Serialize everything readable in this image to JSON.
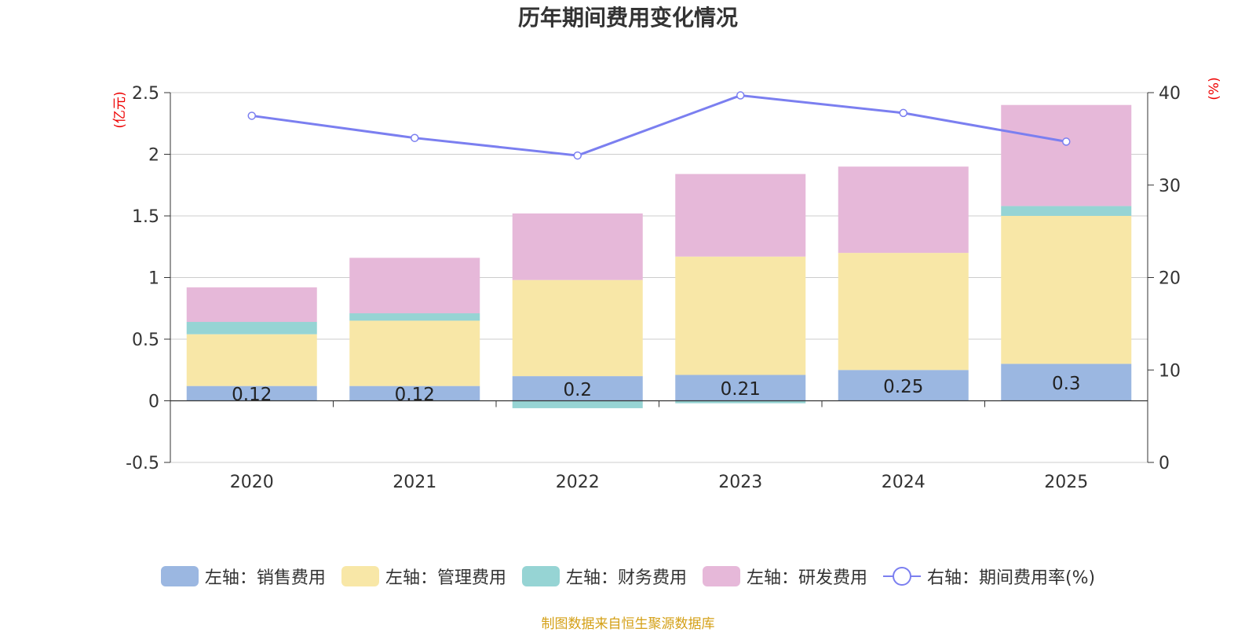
{
  "chart_data": {
    "type": "bar",
    "title": "历年期间费用变化情况",
    "categories": [
      "2020",
      "2021",
      "2022",
      "2023",
      "2024",
      "2025"
    ],
    "left_axis": {
      "unit_label": "(亿元)",
      "ylim": [
        -0.5,
        2.5
      ],
      "ticks": [
        -0.5,
        0,
        0.5,
        1,
        1.5,
        2,
        2.5
      ],
      "tick_labels": [
        "-0.5",
        "0",
        "0.5",
        "1",
        "1.5",
        "2",
        "2.5"
      ]
    },
    "right_axis": {
      "unit_label": "(%)",
      "ylim": [
        0,
        40
      ],
      "ticks": [
        0,
        10,
        20,
        30,
        40
      ],
      "tick_labels": [
        "0",
        "10",
        "20",
        "30",
        "40"
      ]
    },
    "series": [
      {
        "name": "左轴：销售费用",
        "axis": "left",
        "kind": "bar",
        "color": "#9bb7e1",
        "values": [
          0.12,
          0.12,
          0.2,
          0.21,
          0.25,
          0.3
        ],
        "labels": [
          "0.12",
          "0.12",
          "0.2",
          "0.21",
          "0.25",
          "0.3"
        ]
      },
      {
        "name": "左轴：管理费用",
        "axis": "left",
        "kind": "bar",
        "color": "#f8e7a7",
        "values": [
          0.42,
          0.53,
          0.78,
          0.96,
          0.95,
          1.2
        ]
      },
      {
        "name": "左轴：财务费用",
        "axis": "left",
        "kind": "bar",
        "color": "#96d4d4",
        "values": [
          0.1,
          0.06,
          -0.06,
          -0.02,
          0.0,
          0.08
        ]
      },
      {
        "name": "左轴：研发费用",
        "axis": "left",
        "kind": "bar",
        "color": "#e6b8d9",
        "values": [
          0.28,
          0.45,
          0.54,
          0.67,
          0.7,
          0.82
        ]
      },
      {
        "name": "右轴：期间费用率(%)",
        "axis": "right",
        "kind": "line",
        "color": "#7b7ff0",
        "values": [
          37.5,
          35.1,
          33.2,
          39.7,
          37.8,
          34.7
        ]
      }
    ],
    "legend_position": "bottom-center",
    "grid": true
  },
  "source_note": "制图数据来自恒生聚源数据库"
}
